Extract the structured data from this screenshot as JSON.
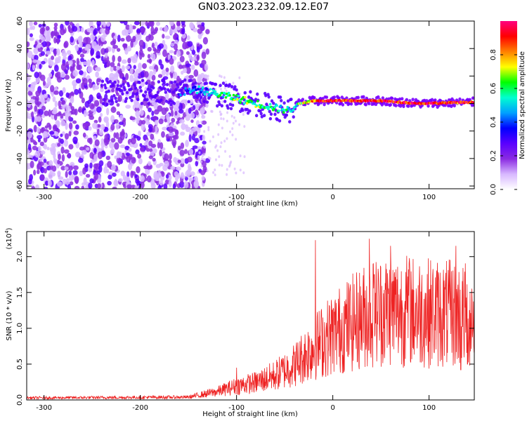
{
  "figure": {
    "title": "GN03.2023.232.09.12.E07"
  },
  "chart_data": [
    {
      "type": "heatmap",
      "xlabel": "Height of straight line (km)",
      "ylabel": "Frequency (Hz)",
      "xlim": [
        -318,
        147
      ],
      "ylim": [
        -62,
        60
      ],
      "xticks": [
        -300,
        -200,
        -100,
        0,
        100
      ],
      "yticks": [
        60,
        40,
        20,
        0,
        -20,
        -40,
        -60
      ],
      "colorbar": {
        "label": "Normalized spectral amplitude",
        "range": [
          0,
          1
        ],
        "ticks": [
          "0.0",
          "0.2",
          "0.4",
          "0.6",
          "0.8"
        ],
        "colors": [
          "#ffffff",
          "#d8b8ff",
          "#8a2be2",
          "#5a00ff",
          "#0000ff",
          "#00a0ff",
          "#00ffd0",
          "#00ff00",
          "#ffff00",
          "#ff8000",
          "#ff0000",
          "#ff0080"
        ]
      },
      "features": {
        "noise_band_end_km": -140,
        "signal_ridge": [
          {
            "x": -160,
            "y": 8,
            "a": 0.35
          },
          {
            "x": -140,
            "y": 10,
            "a": 0.45
          },
          {
            "x": -120,
            "y": 7,
            "a": 0.55
          },
          {
            "x": -100,
            "y": 4,
            "a": 0.6
          },
          {
            "x": -80,
            "y": 0,
            "a": 0.6
          },
          {
            "x": -60,
            "y": -3,
            "a": 0.55
          },
          {
            "x": -45,
            "y": -5,
            "a": 0.5
          },
          {
            "x": -35,
            "y": 0,
            "a": 0.6
          },
          {
            "x": -20,
            "y": 2,
            "a": 0.85
          },
          {
            "x": 0,
            "y": 2,
            "a": 0.95
          },
          {
            "x": 50,
            "y": 2,
            "a": 0.9
          },
          {
            "x": 90,
            "y": 0,
            "a": 0.9
          },
          {
            "x": 147,
            "y": 1,
            "a": 0.85
          }
        ]
      }
    },
    {
      "type": "line",
      "xlabel": "Height of straight line (km)",
      "ylabel": "SNR (10 * v/v)",
      "multiplier": "(x10",
      "multiplier_exp": "4",
      "xlim": [
        -318,
        147
      ],
      "ylim": [
        0,
        2.35
      ],
      "xticks": [
        -300,
        -200,
        -100,
        0,
        100
      ],
      "yticks": [
        0.0,
        0.5,
        1.0,
        1.5,
        2.0
      ],
      "ytick_labels": [
        "0.0",
        "0.5",
        "1.0",
        "1.5",
        "2.0"
      ],
      "series": [
        {
          "color": "#ee2222",
          "envelope": [
            {
              "x": -318,
              "y": 0.03
            },
            {
              "x": -150,
              "y": 0.04
            },
            {
              "x": -120,
              "y": 0.12
            },
            {
              "x": -100,
              "y": 0.2
            },
            {
              "x": -80,
              "y": 0.25
            },
            {
              "x": -60,
              "y": 0.35
            },
            {
              "x": -40,
              "y": 0.5
            },
            {
              "x": -20,
              "y": 0.75
            },
            {
              "x": 0,
              "y": 0.95
            },
            {
              "x": 20,
              "y": 1.1
            },
            {
              "x": 40,
              "y": 1.25
            },
            {
              "x": 60,
              "y": 1.3
            },
            {
              "x": 100,
              "y": 1.25
            },
            {
              "x": 147,
              "y": 1.2
            }
          ],
          "spikes": [
            {
              "x": -100,
              "y": 0.45
            },
            {
              "x": -18,
              "y": 2.23
            },
            {
              "x": 38,
              "y": 2.25
            },
            {
              "x": 43,
              "y": 1.75
            },
            {
              "x": 60,
              "y": 2.15
            },
            {
              "x": 80,
              "y": 1.85
            },
            {
              "x": 128,
              "y": 2.15
            },
            {
              "x": 133,
              "y": 0.42
            },
            {
              "x": 140,
              "y": 0.5
            }
          ]
        }
      ]
    }
  ]
}
